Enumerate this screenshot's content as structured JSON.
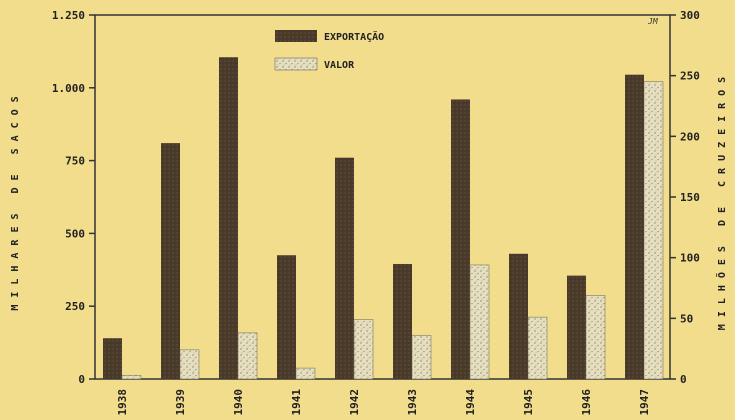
{
  "chart_data": {
    "type": "bar",
    "categories": [
      "1938",
      "1939",
      "1940",
      "1941",
      "1942",
      "1943",
      "1944",
      "1945",
      "1946",
      "1947"
    ],
    "series": [
      {
        "name": "EXPORTAÇÃO",
        "axis": "left",
        "color": "#4a3a2a",
        "values": [
          140,
          810,
          1105,
          425,
          760,
          395,
          960,
          430,
          355,
          1045
        ]
      },
      {
        "name": "VALOR",
        "axis": "right",
        "color": "#dcd4b0",
        "values": [
          3,
          24,
          38,
          9,
          49,
          36,
          94,
          51,
          69,
          245
        ]
      }
    ],
    "left_axis": {
      "label": "MILHARES DE SACOS",
      "range": [
        0,
        1250
      ],
      "ticks": [
        0,
        250,
        500,
        750,
        1000,
        1250
      ],
      "tick_labels": [
        "0",
        "250",
        "500",
        "750",
        "1.000",
        "1.250"
      ]
    },
    "right_axis": {
      "label": "MILHÕES DE CRUZEIROS",
      "range": [
        0,
        300
      ],
      "ticks": [
        0,
        50,
        100,
        150,
        200,
        250,
        300
      ],
      "tick_labels": [
        "0",
        "50",
        "100",
        "150",
        "200",
        "250",
        "300"
      ]
    },
    "legend_placement": "top-center",
    "corner_mark": "JM",
    "grid": false
  }
}
